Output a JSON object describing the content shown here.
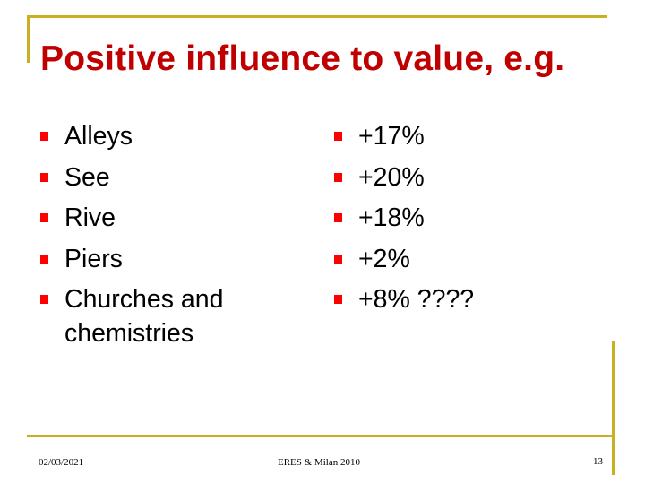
{
  "slide": {
    "title": "Positive influence to value, e.g.",
    "left_items": [
      "Alleys",
      "See",
      "Rive",
      "Piers",
      "Churches and chemistries"
    ],
    "right_items": [
      "+17%",
      "+20%",
      "+18%",
      "+2%",
      "+8%  ????"
    ],
    "colors": {
      "title": "#c00000",
      "bullet": "#ff0000",
      "frame": "#c8b022"
    },
    "bullet_icon": "square-bullet-icon"
  },
  "footer": {
    "date": "02/03/2021",
    "center": "ERES & Milan 2010",
    "page": "13"
  }
}
